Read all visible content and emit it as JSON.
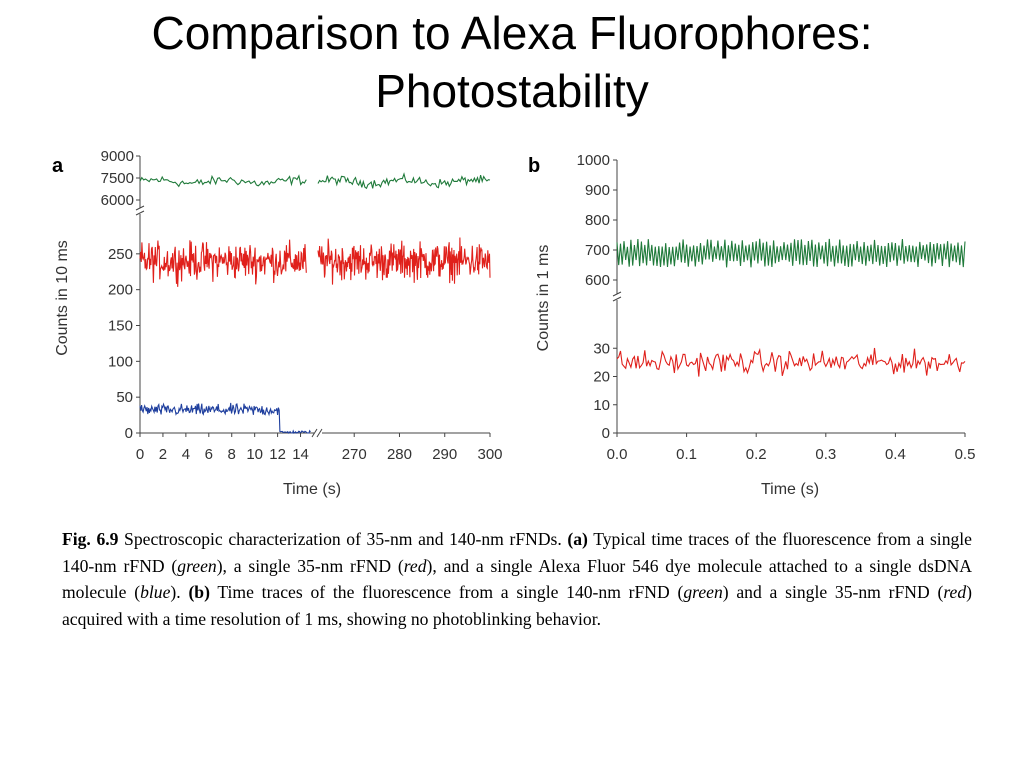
{
  "slide": {
    "title_line1": "Comparison to Alexa Fluorophores:",
    "title_line2": "Photostability"
  },
  "colors": {
    "green": "#1f7a3a",
    "red": "#e0201b",
    "blue": "#1f3f9e",
    "axis": "#444444"
  },
  "chart_data": [
    {
      "panel": "a",
      "type": "line",
      "xlabel": "Time (s)",
      "ylabel": "Counts in 10 ms",
      "x_tick_labels_left": [
        "0",
        "2",
        "4",
        "6",
        "8",
        "10",
        "12",
        "14"
      ],
      "x_tick_labels_right": [
        "270",
        "280",
        "290",
        "300"
      ],
      "xlim_left": [
        0,
        15
      ],
      "xlim_right": [
        262,
        300
      ],
      "y_tick_labels_upper": [
        "9000",
        "7500",
        "6000"
      ],
      "y_tick_labels_lower": [
        "0",
        "50",
        "100",
        "150",
        "200",
        "250"
      ],
      "ylim_upper": [
        6000,
        9000
      ],
      "ylim_lower": [
        0,
        300
      ],
      "axis_break_y": true,
      "axis_break_x": true,
      "series": [
        {
          "color": "green",
          "axis": "upper",
          "mean": 7250,
          "noise": 450,
          "gap_at": 14.5
        },
        {
          "color": "red",
          "axis": "lower",
          "mean": 240,
          "noise": 38,
          "gap_at": 14.5
        },
        {
          "color": "blue",
          "axis": "lower",
          "mean": 32,
          "noise": 12,
          "bleach_at": 12.2
        }
      ]
    },
    {
      "panel": "b",
      "type": "line",
      "xlabel": "Time (s)",
      "ylabel": "Counts in 1 ms",
      "x_tick_labels": [
        "0.0",
        "0.1",
        "0.2",
        "0.3",
        "0.4",
        "0.5"
      ],
      "xlim": [
        0,
        0.5
      ],
      "y_tick_labels_upper": [
        "600",
        "700",
        "800",
        "900",
        "1000"
      ],
      "y_tick_labels_lower": [
        "0",
        "10",
        "20",
        "30"
      ],
      "ylim_upper": [
        600,
        1000
      ],
      "ylim_lower": [
        0,
        40
      ],
      "axis_break_y": true,
      "series": [
        {
          "color": "green",
          "axis": "upper",
          "mean": 690,
          "noise": 40
        },
        {
          "color": "red",
          "axis": "lower",
          "mean": 25,
          "noise": 6
        }
      ]
    }
  ],
  "caption": {
    "label": "Fig. 6.9",
    "text1": "  Spectroscopic characterization of 35-nm and 140-nm rFNDs. ",
    "a": "(a)",
    "text2": " Typical time traces of the fluorescence from a single 140-nm rFND (",
    "green": "green",
    "text3": "), a single 35-nm rFND (",
    "red": "red",
    "text4": "), and a single Alexa Fluor 546 dye molecule attached to a single dsDNA molecule (",
    "blue": "blue",
    "text5": "). ",
    "b": "(b)",
    "text6": " Time traces of the fluorescence from a single 140-nm rFND (",
    "green2": "green",
    "text7": ") and a single 35-nm rFND (",
    "red2": "red",
    "text8": ") acquired with a time resolution of 1 ms, showing no photoblinking behavior."
  }
}
